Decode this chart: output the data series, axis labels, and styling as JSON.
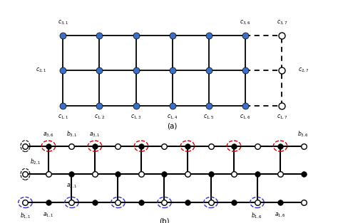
{
  "fig_width": 4.74,
  "fig_height": 3.14,
  "dpi": 100,
  "panel_a": {
    "filled_color": "#3A6FC4",
    "open_color": "white",
    "edge_color": "black",
    "col_labels": [
      "c_{1,1}",
      "c_{1,2}",
      "c_{1,3}",
      "c_{1,4}",
      "c_{1,5}",
      "c_{1,6}",
      "c_{1,7}"
    ],
    "row2_label": "c_{2,1}",
    "row2_label_right": "c_{2,7}",
    "row3_label_left": "c_{3,1}",
    "row3_label_right6": "c_{3,6}",
    "row3_label_right7": "c_{3,7}"
  },
  "panel_b": {
    "red_circle_color": "#cc0000",
    "blue_circle_color": "#3333bb",
    "labels_top": [
      [
        "a_{3,6}",
        1
      ],
      [
        "b_{3,1}",
        2
      ],
      [
        "a_{3,1}",
        3
      ],
      [
        "b_{3,6}",
        12
      ]
    ],
    "label_b21": [
      "b_{2,1}",
      0,
      1
    ],
    "label_a21": [
      "a_{2,1}",
      2,
      1
    ],
    "labels_bot": [
      [
        "b_{1,1}",
        0
      ],
      [
        "a_{1,1}",
        1
      ],
      [
        "b_{1,6}",
        10
      ],
      [
        "a_{1,6}",
        11
      ]
    ]
  }
}
